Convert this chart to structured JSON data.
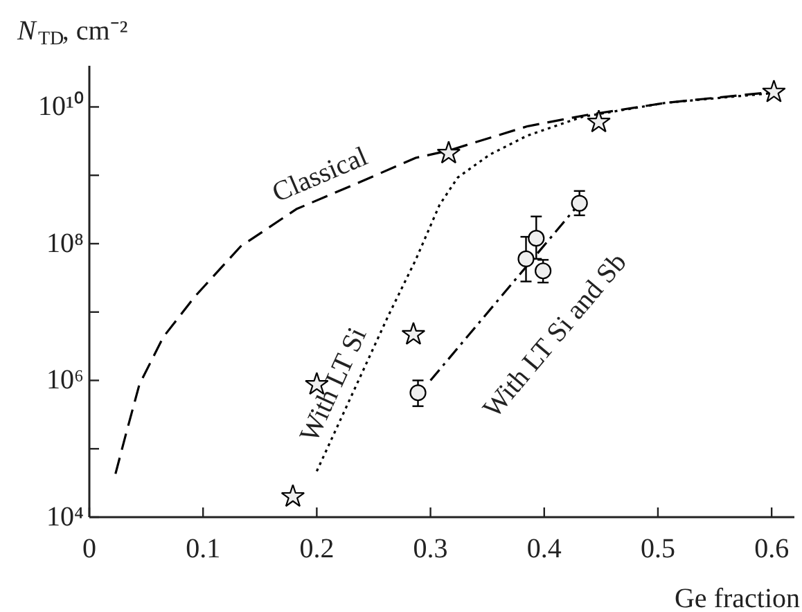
{
  "chart_data": {
    "type": "line",
    "ylabel": "N$_{TD}$, cm⁻²",
    "xlabel": "Ge fraction",
    "log": "y",
    "grid": false,
    "xlim": [
      0,
      0.62
    ],
    "xticks": [
      0,
      0.1,
      0.2,
      0.3,
      0.4,
      0.5,
      0.6
    ],
    "ylim": [
      10000,
      40000000000
    ],
    "yticks": [
      {
        "value": 10000,
        "label": "10⁴"
      },
      {
        "value": 100000,
        "label": null
      },
      {
        "value": 1000000,
        "label": "10⁶"
      },
      {
        "value": 10000000,
        "label": null
      },
      {
        "value": 100000000,
        "label": "10⁸"
      },
      {
        "value": 1000000000,
        "label": null
      },
      {
        "value": 10000000000,
        "label": "10¹⁰"
      }
    ],
    "series": [
      {
        "name": "Classical",
        "type": "line",
        "line_style": "dashed",
        "marker": "none",
        "color": "#000000",
        "x": [
          0.023,
          0.032,
          0.044,
          0.065,
          0.093,
          0.133,
          0.182,
          0.239,
          0.287,
          0.316,
          0.385,
          0.437,
          0.507,
          0.602
        ],
        "values": [
          43000,
          160000,
          870000,
          4300000,
          17000000,
          91000000,
          320000000,
          810000000,
          1800000000,
          2300000000,
          5200000000,
          7600000000,
          11500000000,
          16600000000
        ]
      },
      {
        "name": "With LT Si",
        "type": "line",
        "line_style": "dotted",
        "marker": "none",
        "color": "#000000",
        "x": [
          0.2,
          0.263,
          0.287,
          0.308,
          0.324,
          0.352,
          0.385,
          0.434,
          0.507,
          0.602
        ],
        "values": [
          47000,
          8900000,
          58000000,
          370000000,
          930000000,
          2000000000,
          3800000000,
          7200000000,
          11500000000,
          16000000000
        ]
      },
      {
        "name": "With LT Si and Sb",
        "type": "line",
        "line_style": "dashdot",
        "marker": "none",
        "color": "#000000",
        "x": [
          0.3,
          0.43
        ],
        "values": [
          1000000,
          370000000
        ]
      },
      {
        "type": "scatter",
        "marker": "star",
        "color": "#000000",
        "x": [
          0.179,
          0.2,
          0.285,
          0.316,
          0.448,
          0.602
        ],
        "values": [
          20000,
          870000,
          4700000,
          2100000000,
          6000000000,
          16500000000
        ]
      },
      {
        "type": "scatter",
        "marker": "circle",
        "color": "#000000",
        "x": [
          0.289,
          0.384,
          0.393,
          0.399,
          0.431
        ],
        "values": [
          660000,
          60000000,
          120000000,
          40000000,
          390000000
        ],
        "errors": [
          [
            420000,
            1000000
          ],
          [
            28000000,
            126000000
          ],
          [
            60000000,
            250000000
          ],
          [
            27000000,
            58000000
          ],
          [
            260000000,
            590000000
          ]
        ]
      }
    ]
  }
}
